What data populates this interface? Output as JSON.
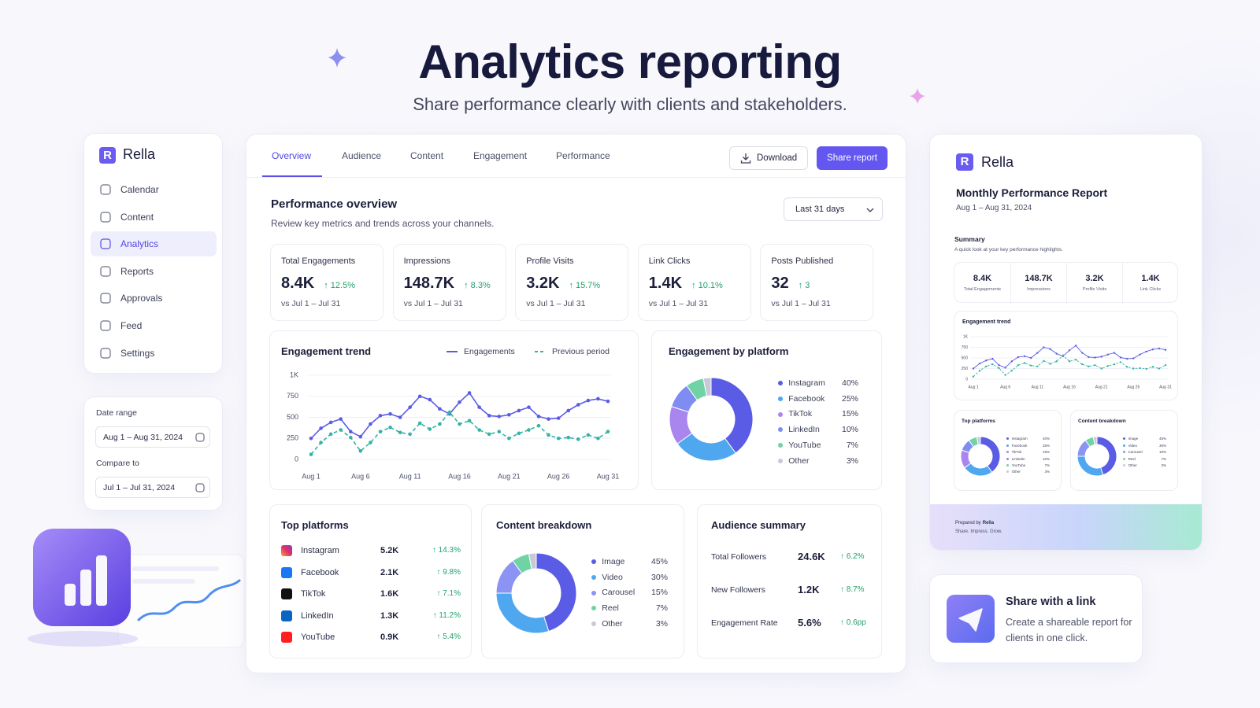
{
  "header": {
    "title": "Analytics reporting",
    "subtitle": "Share performance clearly with clients and stakeholders."
  },
  "brand": {
    "logo": "R",
    "name": "Rella"
  },
  "sidebar": {
    "nav": [
      "Calendar",
      "Content",
      "Analytics",
      "Reports",
      "Approvals",
      "Feed",
      "Settings"
    ]
  },
  "date_panel": {
    "range_label": "Date range",
    "range": "Aug 1 – Aug 31, 2024",
    "compare_label": "Compare to",
    "compare": "Jul 1 – Jul 31, 2024"
  },
  "tabs": [
    "Overview",
    "Audience",
    "Content",
    "Engagement",
    "Performance"
  ],
  "actions": {
    "download": "Download",
    "share": "Share report"
  },
  "overview": {
    "title": "Performance overview",
    "subtitle": "Review key metrics and trends across your channels.",
    "period": "Last 31 days"
  },
  "kpis": [
    {
      "label": "Total Engagements",
      "value": "8.4K",
      "change": "↑ 12.5%",
      "compare": "vs Jul 1 – Jul 31"
    },
    {
      "label": "Impressions",
      "value": "148.7K",
      "change": "↑ 8.3%",
      "compare": "vs Jul 1 – Jul 31"
    },
    {
      "label": "Profile Visits",
      "value": "3.2K",
      "change": "↑ 15.7%",
      "compare": "vs Jul 1 – Jul 31"
    },
    {
      "label": "Link Clicks",
      "value": "1.4K",
      "change": "↑ 10.1%",
      "compare": "vs Jul 1 – Jul 31"
    },
    {
      "label": "Posts Published",
      "value": "32",
      "change": "↑ 3",
      "compare": "vs Jul 1 – Jul 31"
    }
  ],
  "chart_data": [
    {
      "type": "line",
      "title": "Engagement trend",
      "categories": [
        "Aug 1",
        null,
        null,
        null,
        null,
        "Aug 6",
        null,
        null,
        null,
        null,
        "Aug 11",
        null,
        null,
        null,
        null,
        "Aug 16",
        null,
        null,
        null,
        null,
        "Aug 21",
        null,
        null,
        null,
        null,
        "Aug 26",
        null,
        null,
        null,
        null,
        "Aug 31"
      ],
      "series": [
        {
          "name": "Engagements",
          "color": "#5b5ce6",
          "dashed": false,
          "values": [
            250,
            370,
            440,
            480,
            330,
            270,
            420,
            520,
            540,
            500,
            620,
            750,
            710,
            600,
            540,
            680,
            790,
            620,
            520,
            510,
            530,
            580,
            620,
            510,
            480,
            490,
            580,
            650,
            700,
            720,
            690
          ]
        },
        {
          "name": "Previous period",
          "color": "#35b3a5",
          "dashed": true,
          "values": [
            60,
            200,
            300,
            350,
            260,
            100,
            200,
            330,
            380,
            320,
            300,
            430,
            360,
            420,
            560,
            420,
            460,
            350,
            300,
            330,
            250,
            310,
            350,
            400,
            290,
            250,
            260,
            240,
            290,
            250,
            330
          ]
        }
      ],
      "ylim": [
        0,
        1000
      ],
      "yticks": [
        0,
        250,
        500,
        750,
        {
          "value": 1000,
          "label": "1K"
        }
      ],
      "grid": true
    },
    {
      "type": "donut",
      "title": "Engagement by platform",
      "categories": [
        "Instagram",
        "Facebook",
        "TikTok",
        "LinkedIn",
        "YouTube",
        "Other"
      ],
      "values": [
        40,
        25,
        15,
        10,
        7,
        3
      ],
      "value_labels": [
        "40%",
        "25%",
        "15%",
        "10%",
        "7%",
        "3%"
      ],
      "colors": [
        "#5b5ce6",
        "#4ea7ef",
        "#a985f0",
        "#7f8cf2",
        "#6fd3a6",
        "#c8c9d8"
      ]
    },
    {
      "type": "donut",
      "title": "Content breakdown",
      "categories": [
        "Image",
        "Video",
        "Carousel",
        "Reel",
        "Other"
      ],
      "values": [
        45,
        30,
        15,
        7,
        3
      ],
      "value_labels": [
        "45%",
        "30%",
        "15%",
        "7%",
        "3%"
      ],
      "colors": [
        "#5b5ce6",
        "#4ea7ef",
        "#8b93f3",
        "#6fd3a6",
        "#c8c9d8"
      ]
    }
  ],
  "top_platforms": {
    "title": "Top platforms",
    "rows": [
      {
        "name": "Instagram",
        "value": "5.2K",
        "change": "↑ 14.3%"
      },
      {
        "name": "Facebook",
        "value": "2.1K",
        "change": "↑ 9.8%"
      },
      {
        "name": "TikTok",
        "value": "1.6K",
        "change": "↑ 7.1%"
      },
      {
        "name": "LinkedIn",
        "value": "1.3K",
        "change": "↑ 11.2%"
      },
      {
        "name": "YouTube",
        "value": "0.9K",
        "change": "↑ 5.4%"
      }
    ]
  },
  "audience": {
    "title": "Audience summary",
    "rows": [
      {
        "label": "Total Followers",
        "value": "24.6K",
        "change": "↑ 6.2%"
      },
      {
        "label": "New Followers",
        "value": "1.2K",
        "change": "↑ 8.7%"
      },
      {
        "label": "Engagement Rate",
        "value": "5.6%",
        "change": "↑ 0.6pp"
      }
    ]
  },
  "report": {
    "title": "Monthly Performance Report",
    "summary_title": "Summary",
    "summary_text": "A quick look at your key performance highlights.",
    "prepared_by": "Prepared by",
    "tagline": "Share. Impress. Grow."
  },
  "share_card": {
    "title": "Share with a link",
    "text": "Create a shareable report for clients in one click."
  }
}
